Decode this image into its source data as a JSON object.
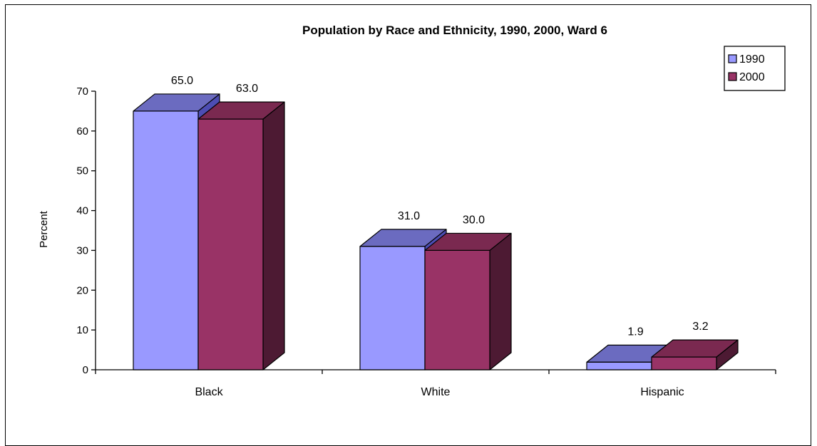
{
  "chart_data": {
    "type": "bar",
    "title": "Population by Race and Ethnicity, 1990, 2000, Ward 6",
    "xlabel": "",
    "ylabel": "Percent",
    "categories": [
      "Black",
      "White",
      "Hispanic"
    ],
    "series": [
      {
        "name": "1990",
        "values": [
          65.0,
          31.0,
          1.9
        ],
        "labels": [
          "65.0",
          "31.0",
          "1.9"
        ],
        "color": "#9999ff",
        "top_color": "#6b6bc0",
        "side_color": "#4d4db3"
      },
      {
        "name": "2000",
        "values": [
          63.0,
          30.0,
          3.2
        ],
        "labels": [
          "63.0",
          "30.0",
          "3.2"
        ],
        "color": "#993366",
        "top_color": "#7a2950",
        "side_color": "#4d1a33"
      }
    ],
    "yticks": [
      "0",
      "10",
      "20",
      "30",
      "40",
      "50",
      "60",
      "70"
    ],
    "ylim": [
      0,
      70
    ],
    "grid": false,
    "legend_position": "top-right",
    "style_3d": true
  }
}
